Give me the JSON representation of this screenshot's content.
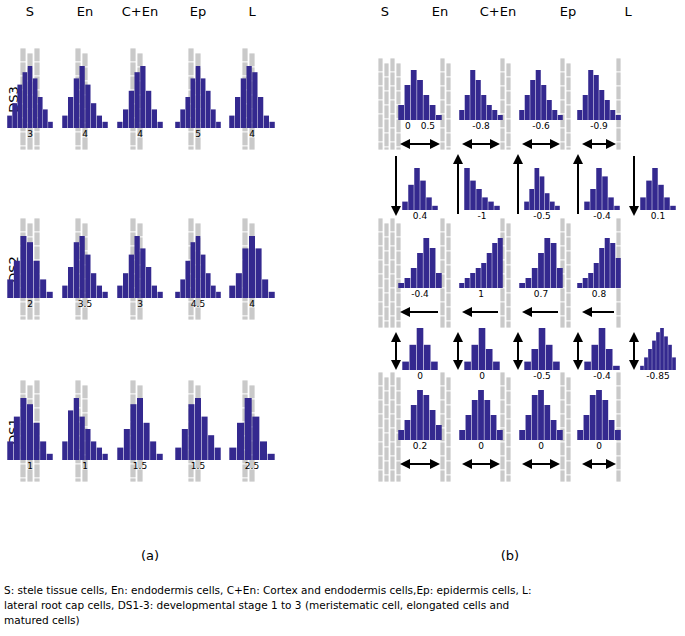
{
  "headers": [
    "S",
    "En",
    "C+En",
    "Ep",
    "L"
  ],
  "stages": [
    "DS3",
    "DS2",
    "DS1"
  ],
  "panel_labels": [
    "(a)",
    "(b)"
  ],
  "caption": [
    "S: stele tissue cells, En: endodermis cells, C+En: Cortex and endodermis cells,Ep: epidermis cells, L:",
    "lateral root cap cells, DS1-3: developmental stage 1 to 3 (meristematic cell, elongated cells and",
    "matured cells)"
  ],
  "chart_data": [
    {
      "type": "bar",
      "panel": "(a)",
      "stage": "DS3",
      "column": "S",
      "values": [
        2,
        4,
        7,
        9,
        10,
        8,
        5,
        3,
        1
      ],
      "color": "#34298f",
      "annotations": [
        3
      ]
    },
    {
      "type": "bar",
      "panel": "(a)",
      "stage": "DS3",
      "column": "En",
      "values": [
        2,
        5,
        8,
        10,
        7,
        4,
        2,
        1
      ],
      "color": "#34298f",
      "annotations": [
        4
      ]
    },
    {
      "type": "bar",
      "panel": "(a)",
      "stage": "DS3",
      "column": "C+En",
      "values": [
        1,
        3,
        6,
        9,
        10,
        6,
        3,
        1
      ],
      "color": "#34298f",
      "annotations": [
        4
      ]
    },
    {
      "type": "bar",
      "panel": "(a)",
      "stage": "DS3",
      "column": "Ep",
      "values": [
        1,
        3,
        5,
        8,
        10,
        8,
        6,
        3,
        1
      ],
      "color": "#34298f",
      "annotations": [
        5
      ]
    },
    {
      "type": "bar",
      "panel": "(a)",
      "stage": "DS3",
      "column": "L",
      "values": [
        2,
        5,
        8,
        10,
        9,
        5,
        2,
        1
      ],
      "color": "#34298f",
      "annotations": [
        4
      ]
    },
    {
      "type": "bar",
      "panel": "(a)",
      "stage": "DS2",
      "column": "S",
      "values": [
        3,
        6,
        10,
        9,
        6,
        3,
        1
      ],
      "color": "#34298f",
      "annotations": [
        2
      ]
    },
    {
      "type": "bar",
      "panel": "(a)",
      "stage": "DS2",
      "column": "En",
      "values": [
        2,
        5,
        9,
        10,
        7,
        4,
        2,
        1
      ],
      "color": "#34298f",
      "annotations": [
        3.5
      ]
    },
    {
      "type": "bar",
      "panel": "(a)",
      "stage": "DS2",
      "column": "C+En",
      "values": [
        2,
        4,
        7,
        10,
        8,
        5,
        2,
        1
      ],
      "color": "#34298f",
      "annotations": [
        3
      ]
    },
    {
      "type": "bar",
      "panel": "(a)",
      "stage": "DS2",
      "column": "Ep",
      "values": [
        1,
        3,
        6,
        9,
        10,
        7,
        4,
        2,
        1
      ],
      "color": "#34298f",
      "annotations": [
        4.5
      ]
    },
    {
      "type": "bar",
      "panel": "(a)",
      "stage": "DS2",
      "column": "L",
      "values": [
        2,
        4,
        8,
        10,
        8,
        3,
        1
      ],
      "color": "#34298f",
      "annotations": [
        4
      ]
    },
    {
      "type": "bar",
      "panel": "(a)",
      "stage": "DS1",
      "column": "S",
      "values": [
        3,
        7,
        10,
        9,
        6,
        3,
        1
      ],
      "color": "#34298f",
      "annotations": [
        1
      ]
    },
    {
      "type": "bar",
      "panel": "(a)",
      "stage": "DS1",
      "column": "En",
      "values": [
        3,
        8,
        10,
        7,
        5,
        3,
        2,
        1
      ],
      "color": "#34298f",
      "annotations": [
        1
      ]
    },
    {
      "type": "bar",
      "panel": "(a)",
      "stage": "DS1",
      "column": "C+En",
      "values": [
        2,
        5,
        9,
        10,
        6,
        3,
        1
      ],
      "color": "#34298f",
      "annotations": [
        1.5
      ]
    },
    {
      "type": "bar",
      "panel": "(a)",
      "stage": "DS1",
      "column": "Ep",
      "values": [
        2,
        5,
        9,
        10,
        7,
        4,
        2
      ],
      "color": "#34298f",
      "annotations": [
        1.5
      ]
    },
    {
      "type": "bar",
      "panel": "(a)",
      "stage": "DS1",
      "column": "L",
      "values": [
        2,
        6,
        10,
        7,
        3,
        1
      ],
      "color": "#34298f",
      "annotations": [
        2.5
      ]
    },
    {
      "type": "bar",
      "panel": "(b)",
      "stage": "DS3",
      "between": [
        "S",
        "En"
      ],
      "values": [
        3,
        7,
        10,
        8,
        5,
        3,
        1
      ],
      "color": "#34298f",
      "annotations": [
        0,
        0.5
      ]
    },
    {
      "type": "bar",
      "panel": "(b)",
      "stage": "DS3",
      "between": [
        "En",
        "C+En"
      ],
      "values": [
        2,
        5,
        10,
        8,
        5,
        3,
        2,
        1
      ],
      "color": "#34298f",
      "annotations": [
        -0.8
      ]
    },
    {
      "type": "bar",
      "panel": "(b)",
      "stage": "DS3",
      "between": [
        "C+En",
        "Ep"
      ],
      "values": [
        2,
        5,
        8,
        10,
        7,
        4,
        2,
        1
      ],
      "color": "#34298f",
      "annotations": [
        -0.6
      ]
    },
    {
      "type": "bar",
      "panel": "(b)",
      "stage": "DS3",
      "between": [
        "Ep",
        "L"
      ],
      "values": [
        2,
        5,
        10,
        9,
        6,
        4,
        2,
        1
      ],
      "color": "#34298f",
      "annotations": [
        -0.9
      ]
    },
    {
      "type": "bar",
      "panel": "(b)",
      "column": "S",
      "between": [
        "DS3",
        "DS2"
      ],
      "values": [
        2,
        6,
        10,
        7,
        3,
        1
      ],
      "color": "#34298f",
      "annotations": [
        0.4
      ]
    },
    {
      "type": "bar",
      "panel": "(b)",
      "column": "En",
      "between": [
        "DS3",
        "DS2"
      ],
      "values": [
        10,
        7,
        5,
        3,
        2,
        1
      ],
      "color": "#34298f",
      "annotations": [
        -1
      ]
    },
    {
      "type": "bar",
      "panel": "(b)",
      "column": "C+En",
      "between": [
        "DS3",
        "DS2"
      ],
      "values": [
        2,
        5,
        10,
        8,
        4,
        2,
        1
      ],
      "color": "#34298f",
      "annotations": [
        -0.5
      ]
    },
    {
      "type": "bar",
      "panel": "(b)",
      "column": "Ep",
      "between": [
        "DS3",
        "DS2"
      ],
      "values": [
        2,
        5,
        10,
        8,
        3,
        1
      ],
      "color": "#34298f",
      "annotations": [
        -0.4
      ]
    },
    {
      "type": "bar",
      "panel": "(b)",
      "column": "L",
      "between": [
        "DS3",
        "DS2"
      ],
      "values": [
        3,
        7,
        10,
        6,
        3,
        1
      ],
      "color": "#34298f",
      "annotations": [
        0.1
      ]
    },
    {
      "type": "bar",
      "panel": "(b)",
      "stage": "DS2",
      "between": [
        "S",
        "En"
      ],
      "values": [
        1,
        2,
        4,
        7,
        10,
        8,
        3
      ],
      "color": "#34298f",
      "annotations": [
        -0.4
      ]
    },
    {
      "type": "bar",
      "panel": "(b)",
      "stage": "DS2",
      "between": [
        "En",
        "C+En"
      ],
      "values": [
        1,
        2,
        3,
        4,
        5,
        7,
        9,
        10
      ],
      "color": "#34298f",
      "annotations": [
        1
      ]
    },
    {
      "type": "bar",
      "panel": "(b)",
      "stage": "DS2",
      "between": [
        "C+En",
        "Ep"
      ],
      "values": [
        1,
        2,
        4,
        7,
        10,
        9,
        4
      ],
      "color": "#34298f",
      "annotations": [
        0.7
      ]
    },
    {
      "type": "bar",
      "panel": "(b)",
      "stage": "DS2",
      "between": [
        "Ep",
        "L"
      ],
      "values": [
        1,
        2,
        3,
        5,
        8,
        10,
        9,
        6
      ],
      "color": "#34298f",
      "annotations": [
        0.8
      ]
    },
    {
      "type": "bar",
      "panel": "(b)",
      "column": "S",
      "between": [
        "DS2",
        "DS1"
      ],
      "values": [
        2,
        6,
        10,
        6,
        2
      ],
      "color": "#34298f",
      "annotations": [
        0
      ]
    },
    {
      "type": "bar",
      "panel": "(b)",
      "column": "En",
      "between": [
        "DS2",
        "DS1"
      ],
      "values": [
        2,
        6,
        10,
        5,
        2
      ],
      "color": "#34298f",
      "annotations": [
        0
      ]
    },
    {
      "type": "bar",
      "panel": "(b)",
      "column": "C+En",
      "between": [
        "DS2",
        "DS1"
      ],
      "values": [
        2,
        5,
        10,
        6,
        2
      ],
      "color": "#34298f",
      "annotations": [
        -0.5
      ]
    },
    {
      "type": "bar",
      "panel": "(b)",
      "column": "Ep",
      "between": [
        "DS2",
        "DS1"
      ],
      "values": [
        2,
        6,
        10,
        5,
        1
      ],
      "color": "#34298f",
      "annotations": [
        -0.4
      ]
    },
    {
      "type": "bar",
      "panel": "(b)",
      "column": "L",
      "between": [
        "DS2",
        "DS1"
      ],
      "values": [
        1,
        3,
        5,
        7,
        9,
        10,
        8,
        6,
        3
      ],
      "color": "#34298f",
      "annotations": [
        -0.85
      ]
    },
    {
      "type": "bar",
      "panel": "(b)",
      "stage": "DS1",
      "between": [
        "S",
        "En"
      ],
      "values": [
        2,
        4,
        7,
        10,
        9,
        6,
        3
      ],
      "color": "#34298f",
      "annotations": [
        0.2
      ]
    },
    {
      "type": "bar",
      "panel": "(b)",
      "stage": "DS1",
      "between": [
        "En",
        "C+En"
      ],
      "values": [
        2,
        5,
        8,
        10,
        8,
        5,
        2
      ],
      "color": "#34298f",
      "annotations": [
        0
      ]
    },
    {
      "type": "bar",
      "panel": "(b)",
      "stage": "DS1",
      "between": [
        "C+En",
        "Ep"
      ],
      "values": [
        2,
        5,
        9,
        10,
        7,
        4,
        2
      ],
      "color": "#34298f",
      "annotations": [
        0
      ]
    },
    {
      "type": "bar",
      "panel": "(b)",
      "stage": "DS1",
      "between": [
        "Ep",
        "L"
      ],
      "values": [
        2,
        5,
        9,
        10,
        8,
        4,
        2
      ],
      "color": "#34298f",
      "annotations": [
        0
      ]
    }
  ]
}
